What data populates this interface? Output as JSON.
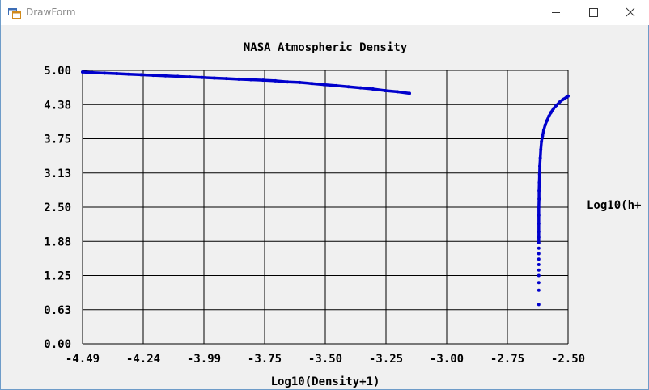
{
  "window": {
    "title": "DrawForm",
    "buttons": [
      "minimize",
      "maximize",
      "close"
    ]
  },
  "chart_data": {
    "type": "scatter",
    "title": "NASA Atmospheric Density",
    "xlabel": "Log10(Density+1)",
    "ylabel": "Log10(h+",
    "xlim": [
      -4.49,
      -2.5
    ],
    "ylim": [
      0.0,
      5.0
    ],
    "x_ticks": [
      "-4.49",
      "-4.24",
      "-3.99",
      "-3.75",
      "-3.50",
      "-3.25",
      "-3.00",
      "-2.75",
      "-2.50"
    ],
    "y_ticks": [
      "5.00",
      "4.38",
      "3.75",
      "3.13",
      "2.50",
      "1.88",
      "1.25",
      "0.63",
      "0.00"
    ],
    "grid": true,
    "series_color": "#0000cc",
    "series": [
      {
        "x": [
          -4.49,
          -4.45,
          -4.4,
          -4.35,
          -4.3,
          -4.25,
          -4.2,
          -4.15,
          -4.1,
          -4.05,
          -4.0,
          -3.95,
          -3.9,
          -3.85,
          -3.8,
          -3.75,
          -3.7,
          -3.65,
          -3.6,
          -3.55,
          -3.5,
          -3.45,
          -3.4,
          -3.35,
          -3.3,
          -3.25,
          -3.2,
          -3.15,
          -2.62,
          -2.62,
          -2.62,
          -2.62,
          -2.62,
          -2.62,
          -2.62,
          -2.62,
          -2.62,
          -2.62,
          -2.62,
          -2.62,
          -2.62,
          -2.62,
          -2.62,
          -2.619,
          -2.619,
          -2.618,
          -2.617,
          -2.616,
          -2.614,
          -2.612,
          -2.609,
          -2.605,
          -2.6,
          -2.594,
          -2.587,
          -2.579,
          -2.57,
          -2.56,
          -2.548,
          -2.535,
          -2.521,
          -2.506,
          -2.5
        ],
        "y": [
          4.97,
          4.96,
          4.95,
          4.94,
          4.93,
          4.92,
          4.91,
          4.9,
          4.89,
          4.88,
          4.87,
          4.86,
          4.85,
          4.84,
          4.83,
          4.82,
          4.81,
          4.79,
          4.78,
          4.76,
          4.74,
          4.72,
          4.7,
          4.68,
          4.66,
          4.63,
          4.61,
          4.58,
          0.72,
          0.98,
          1.12,
          1.25,
          1.35,
          1.45,
          1.55,
          1.65,
          1.75,
          1.85,
          1.95,
          2.05,
          2.2,
          2.35,
          2.5,
          2.65,
          2.8,
          2.95,
          3.1,
          3.25,
          3.4,
          3.55,
          3.7,
          3.8,
          3.9,
          4.0,
          4.08,
          4.16,
          4.23,
          4.3,
          4.36,
          4.42,
          4.47,
          4.51,
          4.53
        ]
      }
    ]
  }
}
